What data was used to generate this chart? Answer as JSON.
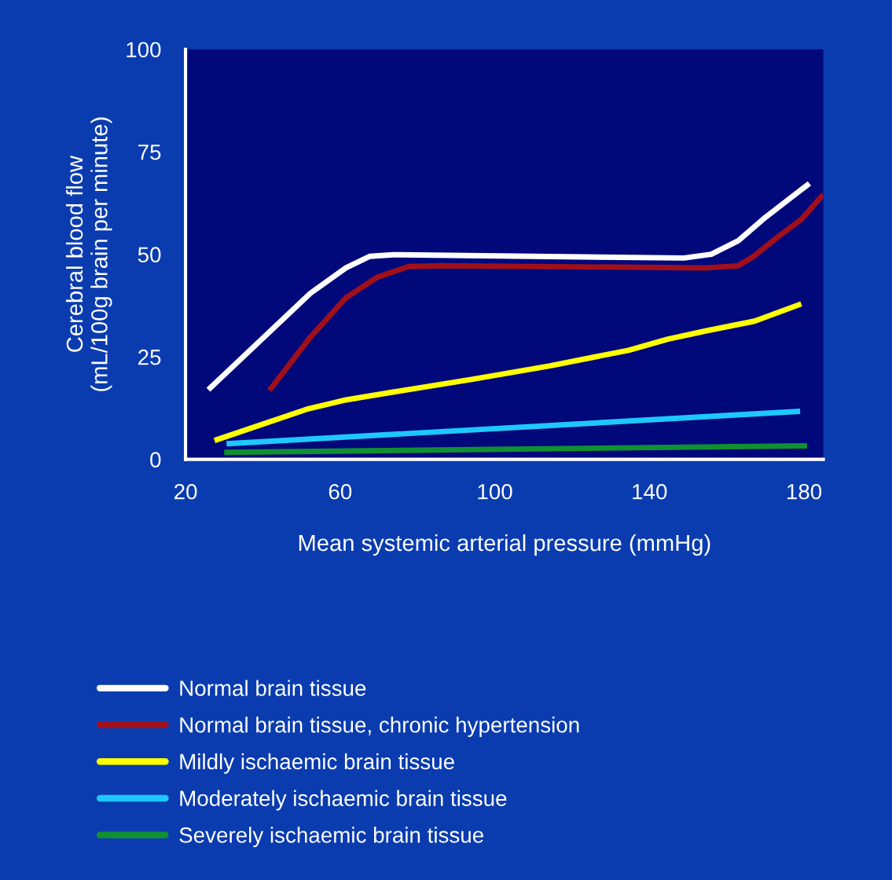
{
  "chart_data": {
    "type": "line",
    "xlabel": "Mean systemic arterial pressure (mmHg)",
    "ylabel": "Cerebral blood flow\n(mL/100g brain per minute)",
    "xlim": [
      20,
      185
    ],
    "ylim": [
      0,
      100
    ],
    "xticks": [
      20,
      60,
      100,
      140,
      180
    ],
    "yticks": [
      0,
      25,
      50,
      75,
      100
    ],
    "grid": false,
    "legend": "bottom",
    "marker": "none",
    "line_style": "solid",
    "series": [
      {
        "name": "Normal brain tissue",
        "color": "#ffffff",
        "x": [
          25.9,
          52.3,
          61.5,
          67.6,
          73.7,
          148.9,
          156,
          163,
          170,
          181.4
        ],
        "values": [
          17,
          40.5,
          46.7,
          49.5,
          49.9,
          49.1,
          50,
          53.3,
          59,
          67.3
        ]
      },
      {
        "name": "Normal brain tissue, chronic hypertension",
        "color": "#a0101a",
        "x": [
          41.7,
          52.3,
          61.5,
          69.6,
          77.7,
          85.9,
          155,
          163,
          167,
          173.3,
          179.3,
          185
        ],
        "values": [
          16.8,
          29.8,
          39.4,
          44.4,
          47,
          47.2,
          46.7,
          47.2,
          49.5,
          54.3,
          58.5,
          64.6
        ]
      },
      {
        "name": "Mildly ischaemic brain tissue",
        "color": "#ffff00",
        "x": [
          27.5,
          51.3,
          61.5,
          73.7,
          94,
          114.3,
          134.6,
          144.8,
          155,
          167.2,
          179.3
        ],
        "values": [
          4.6,
          12.2,
          14.5,
          16.4,
          19.5,
          22.8,
          26.6,
          29.3,
          31.4,
          33.7,
          37.9
        ]
      },
      {
        "name": "Moderately ischaemic brain tissue",
        "color": "#1ec8ff",
        "x": [
          30.6,
          179
        ],
        "values": [
          3.8,
          11.7
        ]
      },
      {
        "name": "Severely ischaemic brain tissue",
        "color": "#109030",
        "x": [
          30,
          180.8
        ],
        "values": [
          1.7,
          3.3
        ]
      }
    ]
  }
}
